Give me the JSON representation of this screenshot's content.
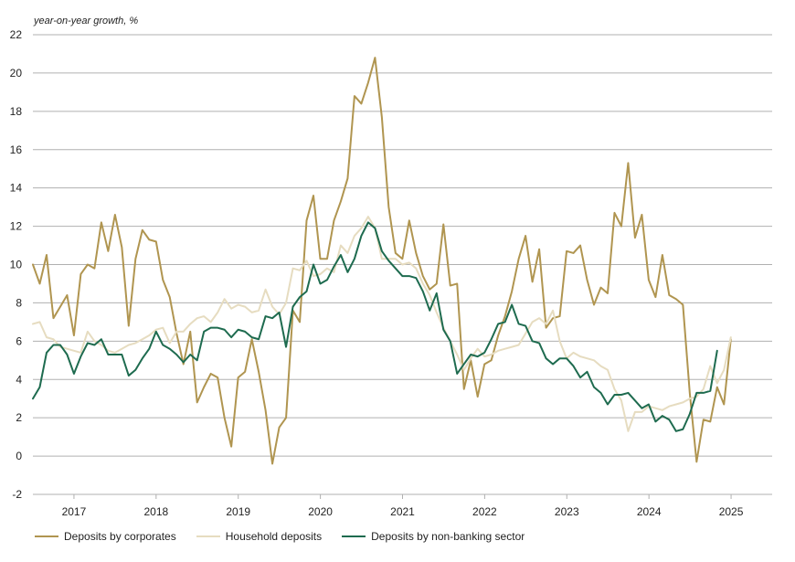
{
  "chart_data": {
    "type": "line",
    "ylabel": "year-on-year growth, %",
    "ylim": [
      -2,
      22
    ],
    "y_ticks": [
      "22",
      "20",
      "18",
      "16",
      "14",
      "12",
      "10",
      "8",
      "6",
      "4",
      "2",
      "0",
      "-2"
    ],
    "year_labels": [
      "2017",
      "2018",
      "2019",
      "2020",
      "2021",
      "2022",
      "2023",
      "2024",
      "2025"
    ],
    "x_start_year": 2016.5,
    "x_end_year": 2025.5,
    "grid": true,
    "legend_position": "bottom",
    "colors": {
      "corporates": "#b09550",
      "households": "#e6dcc0",
      "nonbank": "#1e6b4f",
      "grid": "#b0b0b0"
    },
    "series": [
      {
        "name": "Deposits by corporates",
        "key": "corporates",
        "start": 2016.5,
        "step": 0.0833,
        "values": [
          10.0,
          9.0,
          10.5,
          7.2,
          7.8,
          8.4,
          6.3,
          9.5,
          10.0,
          9.8,
          12.2,
          10.7,
          12.6,
          10.9,
          6.8,
          10.3,
          11.8,
          11.3,
          11.2,
          9.2,
          8.3,
          6.4,
          4.8,
          6.5,
          2.8,
          3.6,
          4.3,
          4.1,
          2.0,
          0.5,
          4.1,
          4.4,
          6.1,
          4.4,
          2.4,
          -0.4,
          1.5,
          2.0,
          7.6,
          7.0,
          12.3,
          13.6,
          10.3,
          10.3,
          12.3,
          13.3,
          14.5,
          18.8,
          18.4,
          19.5,
          20.8,
          17.7,
          13.0,
          10.6,
          10.3,
          12.3,
          10.6,
          9.4,
          8.7,
          9.0,
          12.1,
          8.9,
          9.0,
          3.5,
          5.0,
          3.1,
          4.8,
          5.0,
          6.3,
          7.3,
          8.6,
          10.3,
          11.5,
          9.1,
          10.8,
          6.7,
          7.2,
          7.3,
          10.7,
          10.6,
          11.0,
          9.2,
          7.9,
          8.8,
          8.5,
          12.7,
          12.0,
          15.3,
          11.4,
          12.6,
          9.2,
          8.3,
          10.5,
          8.4,
          8.2,
          7.9,
          3.3,
          -0.3,
          1.9,
          1.8,
          3.6,
          2.7,
          6.1
        ]
      },
      {
        "name": "Household deposits",
        "key": "households",
        "start": 2016.5,
        "step": 0.0833,
        "values": [
          6.9,
          7.0,
          6.2,
          6.1,
          5.7,
          5.6,
          5.5,
          5.4,
          6.5,
          6.0,
          5.8,
          5.5,
          5.4,
          5.6,
          5.8,
          5.9,
          6.1,
          6.3,
          6.6,
          6.7,
          5.9,
          6.5,
          6.5,
          6.9,
          7.2,
          7.3,
          7.0,
          7.5,
          8.2,
          7.7,
          7.9,
          7.8,
          7.5,
          7.6,
          8.7,
          7.8,
          7.4,
          8.0,
          9.8,
          9.7,
          10.2,
          9.4,
          9.5,
          9.8,
          9.6,
          11.0,
          10.6,
          11.5,
          11.9,
          12.5,
          11.9,
          10.3,
          10.3,
          10.3,
          10.0,
          10.1,
          9.8,
          9.0,
          8.4,
          7.5,
          6.7,
          6.0,
          5.3,
          4.5,
          5.1,
          5.6,
          5.2,
          5.3,
          5.5,
          5.6,
          5.7,
          5.8,
          6.4,
          7.0,
          7.2,
          6.9,
          7.6,
          6.0,
          5.1,
          5.4,
          5.2,
          5.1,
          5.0,
          4.7,
          4.5,
          3.5,
          2.9,
          1.3,
          2.3,
          2.3,
          2.6,
          2.5,
          2.4,
          2.6,
          2.7,
          2.8,
          3.0,
          3.1,
          3.5,
          4.7,
          3.8,
          4.5,
          6.2
        ]
      },
      {
        "name": "Deposits by non-banking sector",
        "key": "nonbank",
        "start": 2016.5,
        "step": 0.0833,
        "values": [
          3.0,
          3.6,
          5.4,
          5.8,
          5.8,
          5.3,
          4.3,
          5.2,
          5.9,
          5.8,
          6.1,
          5.3,
          5.3,
          5.3,
          4.2,
          4.5,
          5.1,
          5.6,
          6.5,
          5.8,
          5.6,
          5.3,
          4.9,
          5.3,
          5.0,
          6.5,
          6.7,
          6.7,
          6.6,
          6.2,
          6.6,
          6.5,
          6.2,
          6.1,
          7.3,
          7.2,
          7.5,
          5.7,
          7.8,
          8.3,
          8.6,
          10.0,
          9.0,
          9.2,
          9.9,
          10.5,
          9.6,
          10.3,
          11.5,
          12.2,
          11.9,
          10.7,
          10.2,
          9.8,
          9.4,
          9.4,
          9.3,
          8.6,
          7.6,
          8.5,
          6.6,
          6.0,
          4.3,
          4.8,
          5.3,
          5.2,
          5.4,
          6.1,
          6.9,
          7.0,
          7.9,
          6.9,
          6.8,
          6.0,
          5.9,
          5.1,
          4.8,
          5.1,
          5.1,
          4.7,
          4.1,
          4.4,
          3.6,
          3.3,
          2.7,
          3.2,
          3.2,
          3.3,
          2.9,
          2.5,
          2.7,
          1.8,
          2.1,
          1.9,
          1.3,
          1.4,
          2.2,
          3.3,
          3.3,
          3.4,
          5.5
        ]
      }
    ]
  }
}
